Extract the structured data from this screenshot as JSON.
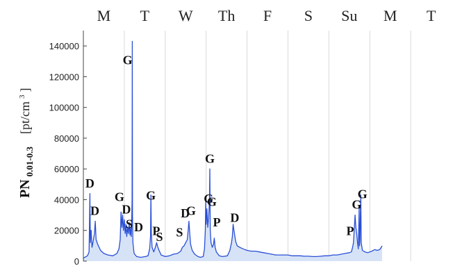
{
  "chart_data": {
    "type": "area",
    "top_labels": [
      "M",
      "T",
      "W",
      "Th",
      "F",
      "S",
      "Su",
      "M",
      "T"
    ],
    "ylabel": {
      "main": "PN",
      "subscript": "0.01-0.3",
      "unit_prefix": "[pt/cm",
      "unit_sup": "3",
      "unit_suffix": "]"
    },
    "ylim": [
      0,
      150000
    ],
    "xlim": [
      0,
      9
    ],
    "y_ticks": [
      0,
      20000,
      40000,
      60000,
      80000,
      100000,
      120000,
      140000
    ],
    "y_tick_labels": [
      "0",
      "20000",
      "40000",
      "60000",
      "80000",
      "100000",
      "120000",
      "140000"
    ],
    "grid": "vertical",
    "series_color": "#2a4fd6",
    "fill_color": "#d6e3f7",
    "series": [
      {
        "points": [
          [
            0.0,
            2000
          ],
          [
            0.1,
            3500
          ],
          [
            0.14,
            6000
          ],
          [
            0.16,
            44000
          ],
          [
            0.17,
            12000
          ],
          [
            0.19,
            20000
          ],
          [
            0.21,
            9000
          ],
          [
            0.24,
            13000
          ],
          [
            0.27,
            18000
          ],
          [
            0.29,
            26000
          ],
          [
            0.31,
            14000
          ],
          [
            0.35,
            11000
          ],
          [
            0.42,
            7000
          ],
          [
            0.5,
            5000
          ],
          [
            0.6,
            4000
          ],
          [
            0.72,
            3500
          ],
          [
            0.82,
            5000
          ],
          [
            0.87,
            8000
          ],
          [
            0.9,
            14000
          ],
          [
            0.92,
            32000
          ],
          [
            0.94,
            22000
          ],
          [
            0.96,
            30000
          ],
          [
            0.98,
            20000
          ],
          [
            1.0,
            27000
          ],
          [
            1.02,
            18000
          ],
          [
            1.04,
            24000
          ],
          [
            1.06,
            16000
          ],
          [
            1.08,
            22000
          ],
          [
            1.1,
            18000
          ],
          [
            1.12,
            25000
          ],
          [
            1.14,
            17000
          ],
          [
            1.16,
            22000
          ],
          [
            1.17,
            16000
          ],
          [
            1.18,
            25000
          ],
          [
            1.19,
            40000
          ],
          [
            1.195,
            143000
          ],
          [
            1.2,
            30000
          ],
          [
            1.21,
            12000
          ],
          [
            1.24,
            5000
          ],
          [
            1.3,
            3000
          ],
          [
            1.4,
            2500
          ],
          [
            1.52,
            3000
          ],
          [
            1.58,
            3500
          ],
          [
            1.62,
            8000
          ],
          [
            1.64,
            16000
          ],
          [
            1.65,
            43000
          ],
          [
            1.66,
            18000
          ],
          [
            1.68,
            9000
          ],
          [
            1.72,
            6000
          ],
          [
            1.76,
            9000
          ],
          [
            1.79,
            12000
          ],
          [
            1.82,
            9000
          ],
          [
            1.85,
            7000
          ],
          [
            1.9,
            4000
          ],
          [
            2.0,
            3000
          ],
          [
            2.1,
            3500
          ],
          [
            2.2,
            4500
          ],
          [
            2.3,
            5000
          ],
          [
            2.38,
            6500
          ],
          [
            2.42,
            9000
          ],
          [
            2.46,
            10000
          ],
          [
            2.5,
            12000
          ],
          [
            2.54,
            14000
          ],
          [
            2.56,
            20000
          ],
          [
            2.58,
            26000
          ],
          [
            2.6,
            18000
          ],
          [
            2.62,
            11000
          ],
          [
            2.66,
            7000
          ],
          [
            2.72,
            4500
          ],
          [
            2.8,
            3000
          ],
          [
            2.86,
            2500
          ],
          [
            2.93,
            3000
          ],
          [
            2.96,
            8000
          ],
          [
            2.98,
            20000
          ],
          [
            2.99,
            39000
          ],
          [
            3.0,
            24000
          ],
          [
            3.02,
            34000
          ],
          [
            3.04,
            22000
          ],
          [
            3.06,
            28000
          ],
          [
            3.08,
            38000
          ],
          [
            3.09,
            60000
          ],
          [
            3.1,
            20000
          ],
          [
            3.12,
            12000
          ],
          [
            3.15,
            9000
          ],
          [
            3.18,
            11000
          ],
          [
            3.2,
            15000
          ],
          [
            3.22,
            9000
          ],
          [
            3.25,
            6000
          ],
          [
            3.32,
            3500
          ],
          [
            3.4,
            3000
          ],
          [
            3.52,
            3500
          ],
          [
            3.58,
            7000
          ],
          [
            3.62,
            12000
          ],
          [
            3.64,
            16000
          ],
          [
            3.66,
            24000
          ],
          [
            3.68,
            20000
          ],
          [
            3.72,
            13000
          ],
          [
            3.76,
            10000
          ],
          [
            3.82,
            9000
          ],
          [
            3.9,
            8000
          ],
          [
            4.0,
            7000
          ],
          [
            4.1,
            6500
          ],
          [
            4.2,
            6500
          ],
          [
            4.3,
            6000
          ],
          [
            4.4,
            5500
          ],
          [
            4.5,
            5000
          ],
          [
            4.6,
            4500
          ],
          [
            4.7,
            4000
          ],
          [
            4.8,
            4000
          ],
          [
            4.9,
            4000
          ],
          [
            5.0,
            4000
          ],
          [
            5.1,
            3500
          ],
          [
            5.2,
            3500
          ],
          [
            5.3,
            3500
          ],
          [
            5.4,
            3200
          ],
          [
            5.5,
            3200
          ],
          [
            5.6,
            3000
          ],
          [
            5.7,
            3000
          ],
          [
            5.8,
            3200
          ],
          [
            5.9,
            3500
          ],
          [
            6.0,
            3500
          ],
          [
            6.1,
            4000
          ],
          [
            6.2,
            4000
          ],
          [
            6.3,
            4500
          ],
          [
            6.4,
            5000
          ],
          [
            6.5,
            5500
          ],
          [
            6.55,
            6000
          ],
          [
            6.58,
            9000
          ],
          [
            6.6,
            12000
          ],
          [
            6.62,
            20000
          ],
          [
            6.64,
            30000
          ],
          [
            6.66,
            22000
          ],
          [
            6.68,
            18000
          ],
          [
            6.7,
            12000
          ],
          [
            6.72,
            8000
          ],
          [
            6.73,
            20000
          ],
          [
            6.74,
            35000
          ],
          [
            6.75,
            10000
          ],
          [
            6.76,
            14000
          ],
          [
            6.77,
            30000
          ],
          [
            6.78,
            43000
          ],
          [
            6.79,
            12000
          ],
          [
            6.82,
            7000
          ],
          [
            6.88,
            6000
          ],
          [
            6.95,
            5500
          ],
          [
            7.05,
            6500
          ],
          [
            7.12,
            7500
          ],
          [
            7.18,
            7000
          ],
          [
            7.24,
            7500
          ],
          [
            7.28,
            9000
          ],
          [
            7.3,
            10000
          ]
        ]
      }
    ],
    "annotations": [
      {
        "text": "D",
        "x": 0.16,
        "y": 48000
      },
      {
        "text": "D",
        "x": 0.28,
        "y": 30000
      },
      {
        "text": "G",
        "x": 0.88,
        "y": 39000
      },
      {
        "text": "D",
        "x": 1.05,
        "y": 31000
      },
      {
        "text": "S",
        "x": 1.12,
        "y": 21500
      },
      {
        "text": "G",
        "x": 1.08,
        "y": 128000
      },
      {
        "text": "D",
        "x": 1.35,
        "y": 19500
      },
      {
        "text": "G",
        "x": 1.65,
        "y": 40000
      },
      {
        "text": "P",
        "x": 1.78,
        "y": 17000
      },
      {
        "text": "S",
        "x": 1.86,
        "y": 13000
      },
      {
        "text": "S",
        "x": 2.35,
        "y": 16000
      },
      {
        "text": "D",
        "x": 2.49,
        "y": 28500
      },
      {
        "text": "G",
        "x": 2.63,
        "y": 30000
      },
      {
        "text": "G",
        "x": 3.06,
        "y": 38000
      },
      {
        "text": "G",
        "x": 3.09,
        "y": 64000
      },
      {
        "text": "G",
        "x": 3.14,
        "y": 36000
      },
      {
        "text": "P",
        "x": 3.26,
        "y": 22500
      },
      {
        "text": "D",
        "x": 3.7,
        "y": 25500
      },
      {
        "text": "P",
        "x": 6.52,
        "y": 17000
      },
      {
        "text": "G",
        "x": 6.68,
        "y": 34000
      },
      {
        "text": "G",
        "x": 6.82,
        "y": 41000
      }
    ]
  }
}
